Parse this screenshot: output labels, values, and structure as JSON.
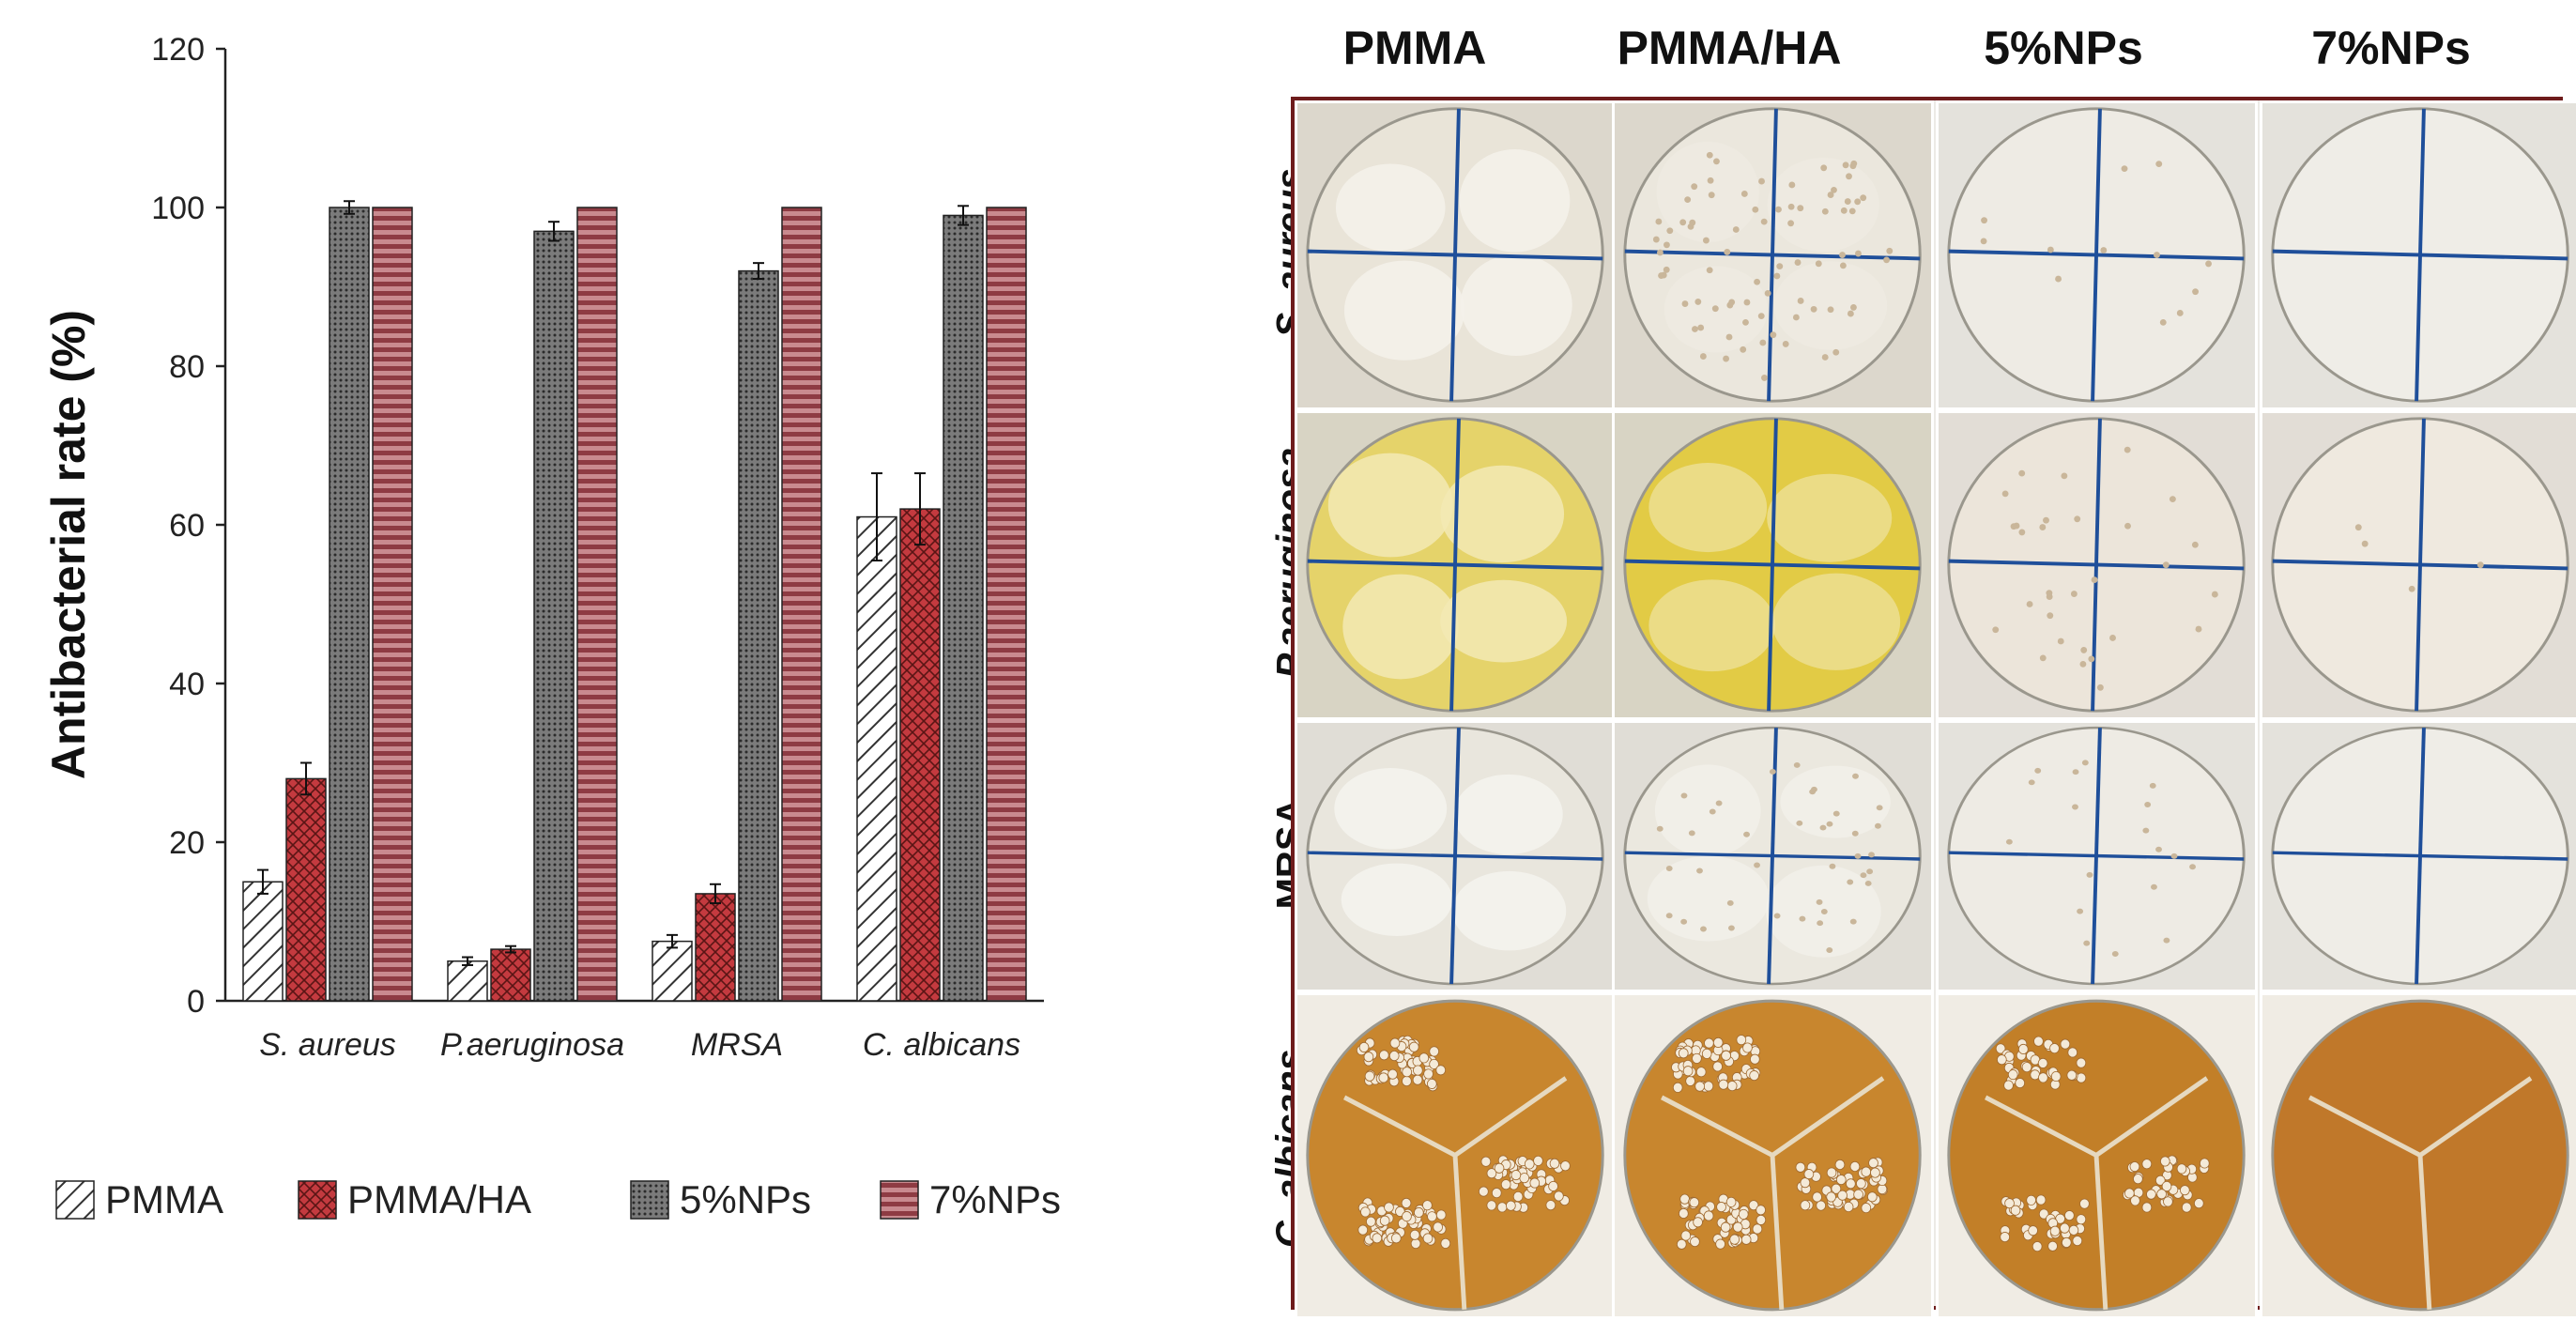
{
  "chart_data": {
    "type": "bar",
    "title": "",
    "xlabel": "",
    "ylabel": "Antibacterial rate (%)",
    "ylim": [
      0,
      120
    ],
    "yticks": [
      "0",
      "20",
      "40",
      "60",
      "80",
      "100",
      "120"
    ],
    "categories": [
      "S. aureus",
      "P.aeruginosa",
      "MRSA",
      "C. albicans"
    ],
    "series": [
      {
        "name": "PMMA",
        "values": [
          15,
          5,
          7.5,
          61
        ],
        "errors": [
          1.5,
          0.5,
          0.8,
          5.5
        ],
        "color": "#ffffff",
        "pattern": "diagonal-hatch"
      },
      {
        "name": "PMMA/HA",
        "values": [
          28,
          6.5,
          13.5,
          62
        ],
        "errors": [
          2,
          0.4,
          1.2,
          4.5
        ],
        "color": "#c43a3f",
        "pattern": "crosshatch"
      },
      {
        "name": "5%NPs",
        "values": [
          100,
          97,
          92,
          99
        ],
        "errors": [
          0.8,
          1.2,
          1,
          1.2
        ],
        "color": "#6f6f6f",
        "pattern": "dotted"
      },
      {
        "name": "7%NPs",
        "values": [
          100,
          100,
          100,
          100
        ],
        "errors": [
          0,
          0,
          0,
          0
        ],
        "color": "#b56a70",
        "pattern": "horizontal-stripes"
      }
    ],
    "legend_position": "bottom"
  },
  "photo_panel": {
    "column_headers": [
      "PMMA",
      "PMMA/HA",
      "5%NPs",
      "7%NPs"
    ],
    "row_headers": [
      "S. aureus",
      "P.aeruginosa",
      "MRSA",
      "C. albicans"
    ],
    "border_color": "#6e1c1c"
  }
}
